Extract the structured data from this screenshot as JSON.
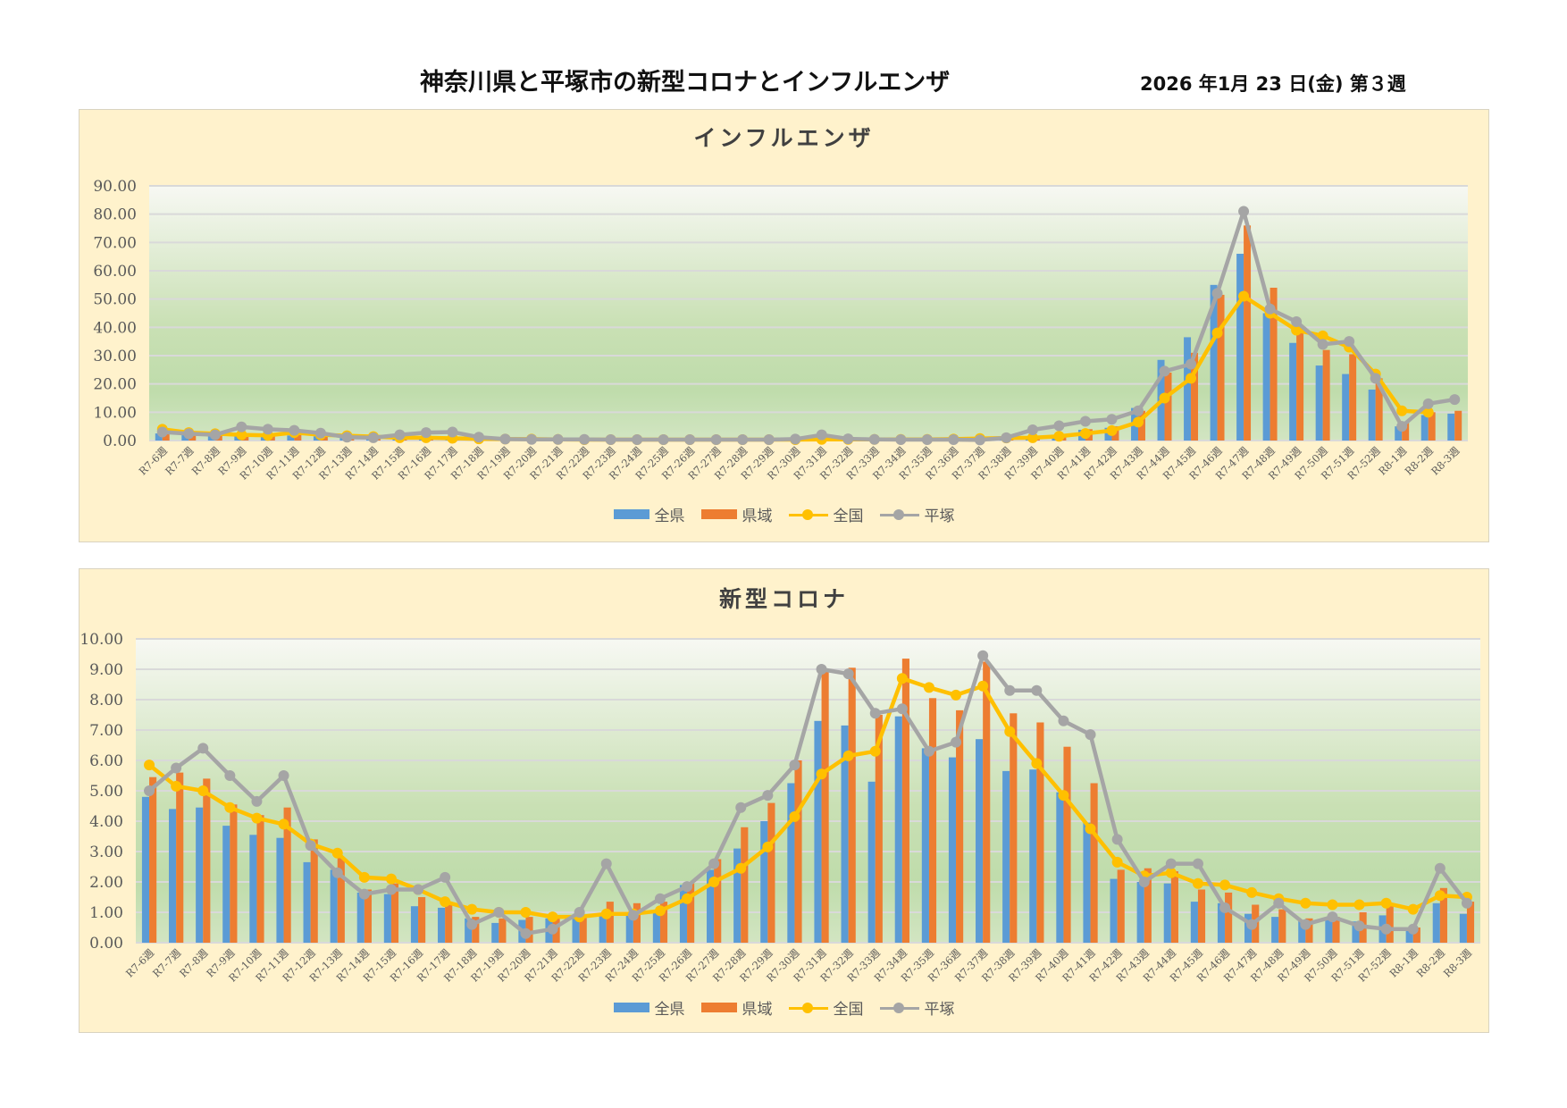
{
  "page": {
    "title": "神奈川県と平塚市の新型コロナとインフルエンザ",
    "date": "2026 年1月 23 日(金) 第３週"
  },
  "legend": {
    "items": [
      {
        "label": "全県",
        "kind": "bar",
        "color": "#5b9bd5"
      },
      {
        "label": "県域",
        "kind": "bar",
        "color": "#ed7d31"
      },
      {
        "label": "全国",
        "kind": "line",
        "color": "#ffc000"
      },
      {
        "label": "平塚",
        "kind": "line",
        "color": "#a5a5a5"
      }
    ]
  },
  "chart_data": [
    {
      "type": "bar",
      "title": "インフルエンザ",
      "xlabel": "",
      "ylabel": "",
      "ylim": [
        0,
        90
      ],
      "yticks": [
        "0.00",
        "10.00",
        "20.00",
        "30.00",
        "40.00",
        "50.00",
        "60.00",
        "70.00",
        "80.00",
        "90.00"
      ],
      "grid": true,
      "legend_position": "bottom",
      "categories": [
        "R7-6週",
        "R7-7週",
        "R7-8週",
        "R7-9週",
        "R7-10週",
        "R7-11週",
        "R7-12週",
        "R7-13週",
        "R7-14週",
        "R7-15週",
        "R7-16週",
        "R7-17週",
        "R7-18週",
        "R7-19週",
        "R7-20週",
        "R7-21週",
        "R7-22週",
        "R7-23週",
        "R7-24週",
        "R7-25週",
        "R7-26週",
        "R7-27週",
        "R7-28週",
        "R7-29週",
        "R7-30週",
        "R7-31週",
        "R7-32週",
        "R7-33週",
        "R7-34週",
        "R7-35週",
        "R7-36週",
        "R7-37週",
        "R7-38週",
        "R7-39週",
        "R7-40週",
        "R7-41週",
        "R7-42週",
        "R7-43週",
        "R7-44週",
        "R7-45週",
        "R7-46週",
        "R7-47週",
        "R7-48週",
        "R7-49週",
        "R7-50週",
        "R7-51週",
        "R7-52週",
        "R8-1週",
        "R8-2週",
        "R8-3週"
      ],
      "series": [
        {
          "name": "全県",
          "kind": "bar",
          "values": [
            2.5,
            2.0,
            1.8,
            1.6,
            1.6,
            1.8,
            1.5,
            1.0,
            0.8,
            0.7,
            0.6,
            0.5,
            0.4,
            0.3,
            0.3,
            0.3,
            0.2,
            0.2,
            0.2,
            0.2,
            0.2,
            0.2,
            0.2,
            0.2,
            0.2,
            0.3,
            0.3,
            0.3,
            0.3,
            0.3,
            0.4,
            0.5,
            0.7,
            0.9,
            1.4,
            3.8,
            4.5,
            11.5,
            28.5,
            36.5,
            55.0,
            66.0,
            45.0,
            34.5,
            26.5,
            23.5,
            18.0,
            5.0,
            9.0,
            9.5
          ]
        },
        {
          "name": "県域",
          "kind": "bar",
          "values": [
            3.0,
            2.2,
            2.0,
            1.8,
            1.7,
            2.0,
            1.7,
            1.1,
            0.9,
            0.8,
            0.7,
            0.6,
            0.5,
            0.4,
            0.3,
            0.3,
            0.3,
            0.2,
            0.2,
            0.2,
            0.2,
            0.2,
            0.2,
            0.2,
            0.2,
            0.3,
            0.3,
            0.3,
            0.3,
            0.3,
            0.4,
            0.5,
            0.7,
            1.0,
            1.5,
            4.0,
            5.0,
            10.5,
            24.0,
            31.0,
            51.5,
            76.0,
            54.0,
            40.0,
            32.0,
            30.5,
            22.0,
            6.5,
            10.0,
            10.5
          ]
        },
        {
          "name": "全国",
          "kind": "line",
          "values": [
            4.0,
            2.8,
            2.4,
            2.0,
            1.8,
            2.8,
            2.0,
            1.7,
            1.4,
            1.0,
            1.0,
            0.8,
            0.6,
            0.5,
            0.5,
            0.4,
            0.3,
            0.3,
            0.3,
            0.3,
            0.3,
            0.3,
            0.3,
            0.3,
            0.3,
            0.4,
            0.4,
            0.4,
            0.4,
            0.4,
            0.5,
            0.7,
            0.9,
            1.0,
            1.5,
            2.5,
            3.5,
            6.5,
            15.0,
            22.0,
            38.0,
            51.0,
            45.0,
            39.0,
            37.0,
            33.0,
            23.5,
            10.5,
            10.0,
            null
          ]
        },
        {
          "name": "平塚",
          "kind": "line",
          "values": [
            3.0,
            2.4,
            2.0,
            4.8,
            4.0,
            3.6,
            2.6,
            1.2,
            1.0,
            2.0,
            2.8,
            3.0,
            1.2,
            0.5,
            0.4,
            0.4,
            0.4,
            0.3,
            0.3,
            0.3,
            0.3,
            0.3,
            0.3,
            0.3,
            0.5,
            2.0,
            0.6,
            0.4,
            0.3,
            0.3,
            0.3,
            0.2,
            1.0,
            3.8,
            5.2,
            6.8,
            7.5,
            10.5,
            24.5,
            27.0,
            52.0,
            81.0,
            46.5,
            42.0,
            34.0,
            35.0,
            22.0,
            5.0,
            13.0,
            14.5
          ]
        }
      ]
    },
    {
      "type": "bar",
      "title": "新型コロナ",
      "xlabel": "",
      "ylabel": "",
      "ylim": [
        0,
        10
      ],
      "yticks": [
        "0.00",
        "1.00",
        "2.00",
        "3.00",
        "4.00",
        "5.00",
        "6.00",
        "7.00",
        "8.00",
        "9.00",
        "10.00"
      ],
      "grid": true,
      "legend_position": "bottom",
      "categories": [
        "R7-6週",
        "R7-7週",
        "R7-8週",
        "R7-9週",
        "R7-10週",
        "R7-11週",
        "R7-12週",
        "R7-13週",
        "R7-14週",
        "R7-15週",
        "R7-16週",
        "R7-17週",
        "R7-18週",
        "R7-19週",
        "R7-20週",
        "R7-21週",
        "R7-22週",
        "R7-23週",
        "R7-24週",
        "R7-25週",
        "R7-26週",
        "R7-27週",
        "R7-28週",
        "R7-29週",
        "R7-30週",
        "R7-31週",
        "R7-32週",
        "R7-33週",
        "R7-34週",
        "R7-35週",
        "R7-36週",
        "R7-37週",
        "R7-38週",
        "R7-39週",
        "R7-40週",
        "R7-41週",
        "R7-42週",
        "R7-43週",
        "R7-44週",
        "R7-45週",
        "R7-46週",
        "R7-47週",
        "R7-48週",
        "R7-49週",
        "R7-50週",
        "R7-51週",
        "R7-52週",
        "R8-1週",
        "R8-2週",
        "R8-3週"
      ],
      "series": [
        {
          "name": "全県",
          "kind": "bar",
          "values": [
            4.8,
            4.4,
            4.45,
            3.85,
            3.55,
            3.45,
            2.65,
            2.4,
            1.65,
            1.6,
            1.2,
            1.15,
            0.8,
            0.65,
            0.75,
            0.8,
            0.85,
            0.95,
            0.95,
            1.05,
            1.9,
            2.4,
            3.1,
            4.0,
            5.25,
            7.3,
            7.15,
            5.3,
            7.45,
            6.4,
            6.1,
            6.7,
            5.65,
            5.7,
            4.95,
            3.95,
            2.1,
            2.0,
            1.95,
            1.35,
            1.3,
            0.95,
            0.85,
            0.75,
            0.75,
            0.7,
            0.9,
            0.5,
            1.3,
            0.95
          ]
        },
        {
          "name": "県域",
          "kind": "bar",
          "values": [
            5.45,
            5.6,
            5.4,
            4.55,
            4.2,
            4.45,
            3.4,
            2.8,
            1.75,
            1.95,
            1.5,
            1.3,
            0.85,
            0.8,
            0.85,
            0.8,
            0.9,
            1.35,
            1.3,
            1.35,
            1.95,
            2.75,
            3.8,
            4.6,
            6.0,
            8.95,
            9.05,
            7.5,
            9.35,
            8.05,
            7.65,
            9.25,
            7.55,
            7.25,
            6.45,
            5.25,
            2.4,
            2.45,
            2.35,
            1.75,
            1.65,
            1.25,
            1.1,
            0.8,
            0.85,
            1.0,
            1.2,
            0.5,
            1.8,
            1.35
          ]
        },
        {
          "name": "全国",
          "kind": "line",
          "values": [
            5.85,
            5.15,
            5.0,
            4.45,
            4.1,
            3.9,
            3.25,
            2.95,
            2.15,
            2.1,
            1.75,
            1.35,
            1.1,
            1.0,
            1.0,
            0.85,
            0.85,
            0.95,
            0.95,
            1.05,
            1.45,
            2.0,
            2.45,
            3.15,
            4.15,
            5.55,
            6.15,
            6.3,
            8.7,
            8.4,
            8.15,
            8.45,
            6.95,
            5.9,
            4.85,
            3.75,
            2.65,
            2.2,
            2.3,
            1.95,
            1.9,
            1.65,
            1.45,
            1.3,
            1.25,
            1.25,
            1.3,
            1.1,
            1.55,
            1.5
          ]
        },
        {
          "name": "平塚",
          "kind": "line",
          "values": [
            5.0,
            5.75,
            6.4,
            5.5,
            4.65,
            5.5,
            3.2,
            2.3,
            1.6,
            1.75,
            1.75,
            2.15,
            0.6,
            1.0,
            0.3,
            0.45,
            1.0,
            2.6,
            0.9,
            1.45,
            1.85,
            2.6,
            4.45,
            4.85,
            5.85,
            9.0,
            8.85,
            7.55,
            7.7,
            6.3,
            6.6,
            9.45,
            8.3,
            8.3,
            7.3,
            6.85,
            3.4,
            2.0,
            2.6,
            2.6,
            1.15,
            0.6,
            1.3,
            0.6,
            0.85,
            0.55,
            0.45,
            0.45,
            2.45,
            1.3
          ]
        }
      ]
    }
  ]
}
